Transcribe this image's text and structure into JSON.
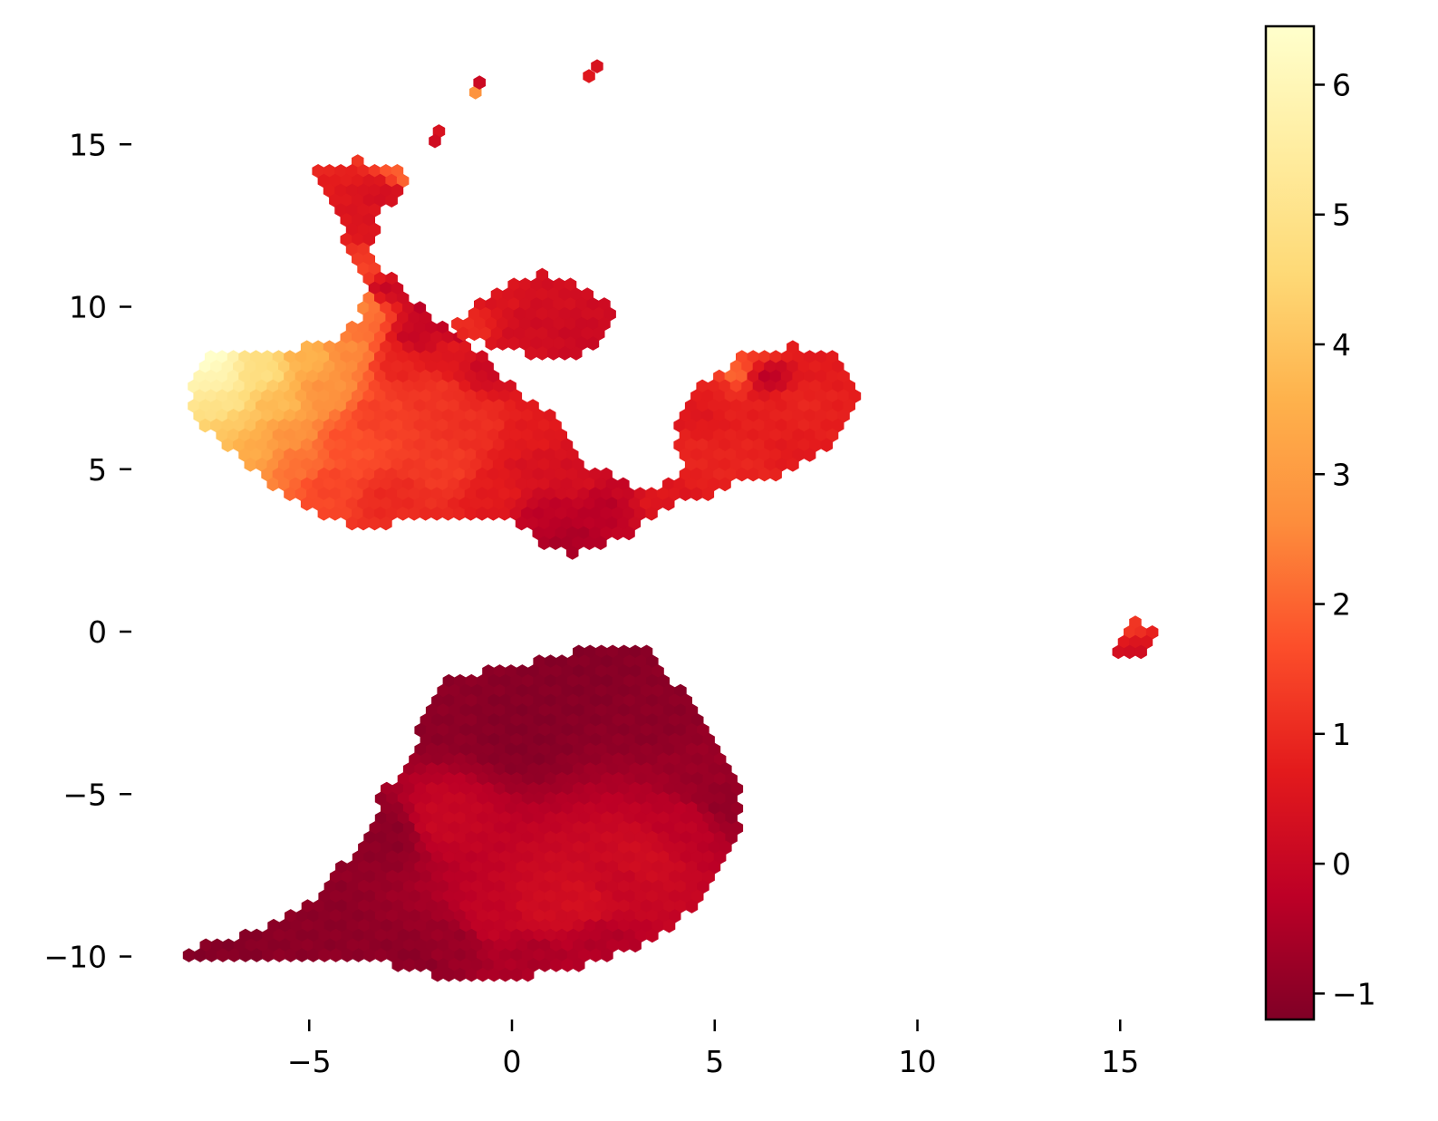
{
  "chart_data": {
    "type": "heatmap",
    "subtype": "hexbin",
    "title": "",
    "xlabel": "",
    "ylabel": "",
    "xlim": [
      -9.9,
      19.7
    ],
    "ylim": [
      -11.8,
      19.0
    ],
    "xticks": [
      -5,
      0,
      5,
      10,
      15
    ],
    "xtick_labels": [
      "−5",
      "0",
      "5",
      "10",
      "15"
    ],
    "yticks": [
      -10,
      -5,
      0,
      5,
      10,
      15
    ],
    "ytick_labels": [
      "−10",
      "−5",
      "0",
      "5",
      "10",
      "15"
    ],
    "grid": false,
    "spines": false,
    "colormap": "YlOrRd_r",
    "colormap_stops": [
      "#800026",
      "#bd0026",
      "#e31a1c",
      "#fc4e2a",
      "#fd8d3c",
      "#feb24c",
      "#fed976",
      "#ffeda0",
      "#ffffcc"
    ],
    "colorbar": {
      "position": "right",
      "range": [
        -1.2,
        6.45
      ],
      "ticks": [
        -1,
        0,
        1,
        2,
        3,
        4,
        5,
        6
      ],
      "tick_labels": [
        "−1",
        "0",
        "1",
        "2",
        "3",
        "4",
        "5",
        "6"
      ]
    },
    "regions": [
      {
        "name": "upper-left cluster",
        "outline": [
          [
            -7.6,
            8.6
          ],
          [
            -6.2,
            8.6
          ],
          [
            -4.8,
            8.8
          ],
          [
            -4.2,
            9.1
          ],
          [
            -3.8,
            9.6
          ],
          [
            -3.6,
            10.3
          ],
          [
            -3.7,
            11.0
          ],
          [
            -4.0,
            11.8
          ],
          [
            -4.5,
            13.3
          ],
          [
            -4.8,
            14.2
          ],
          [
            -3.8,
            14.5
          ],
          [
            -2.7,
            14.4
          ],
          [
            -2.5,
            14.1
          ],
          [
            -3.2,
            12.8
          ],
          [
            -3.6,
            11.8
          ],
          [
            -3.2,
            11.2
          ],
          [
            -2.4,
            10.1
          ],
          [
            -1.5,
            9.3
          ],
          [
            -0.6,
            8.4
          ],
          [
            -0.5,
            7.9
          ],
          [
            0.3,
            7.3
          ],
          [
            0.9,
            6.7
          ],
          [
            1.5,
            6.0
          ],
          [
            1.6,
            5.3
          ],
          [
            2.8,
            4.6
          ],
          [
            3.4,
            4.4
          ],
          [
            4.0,
            4.6
          ],
          [
            4.3,
            5.2
          ],
          [
            4.0,
            5.8
          ],
          [
            4.0,
            6.5
          ],
          [
            4.3,
            7.1
          ],
          [
            4.9,
            7.8
          ],
          [
            5.8,
            8.6
          ],
          [
            7.0,
            8.8
          ],
          [
            8.0,
            8.5
          ],
          [
            8.4,
            7.8
          ],
          [
            8.5,
            7.0
          ],
          [
            8.2,
            6.2
          ],
          [
            7.5,
            5.3
          ],
          [
            6.5,
            4.8
          ],
          [
            5.6,
            4.6
          ],
          [
            4.8,
            4.2
          ],
          [
            4.0,
            4.1
          ],
          [
            3.6,
            3.6
          ],
          [
            2.9,
            3.0
          ],
          [
            2.2,
            2.6
          ],
          [
            1.4,
            2.4
          ],
          [
            0.7,
            2.7
          ],
          [
            0.3,
            3.2
          ],
          [
            -0.4,
            3.5
          ],
          [
            -1.2,
            3.5
          ],
          [
            -2.0,
            3.5
          ],
          [
            -2.7,
            3.4
          ],
          [
            -3.6,
            3.2
          ],
          [
            -4.2,
            3.4
          ],
          [
            -5.0,
            3.7
          ],
          [
            -5.8,
            4.4
          ],
          [
            -6.6,
            5.3
          ],
          [
            -7.6,
            6.3
          ],
          [
            -7.9,
            7.0
          ],
          [
            -7.9,
            7.9
          ]
        ],
        "values": [
          [
            -7.5,
            8.3,
            6.4
          ],
          [
            -7.3,
            7.8,
            5.8
          ],
          [
            -7.1,
            7.0,
            5.0
          ],
          [
            -6.8,
            6.3,
            4.1
          ],
          [
            -6.4,
            5.8,
            3.4
          ],
          [
            -6.2,
            8.0,
            4.8
          ],
          [
            -5.8,
            7.0,
            3.8
          ],
          [
            -5.5,
            6.0,
            2.8
          ],
          [
            -5.2,
            5.2,
            2.2
          ],
          [
            -5.0,
            8.4,
            3.6
          ],
          [
            -4.6,
            7.4,
            2.8
          ],
          [
            -4.5,
            4.5,
            1.5
          ],
          [
            -4.1,
            5.8,
            1.7
          ],
          [
            -4.0,
            8.6,
            2.6
          ],
          [
            -3.7,
            9.5,
            2.2
          ],
          [
            -3.6,
            10.1,
            2.5
          ],
          [
            -3.5,
            12.6,
            0.5
          ],
          [
            -3.1,
            13.5,
            0.3
          ],
          [
            -2.7,
            14.1,
            2.0
          ],
          [
            -3.6,
            11.1,
            1.4
          ],
          [
            -3.2,
            10.5,
            0.0
          ],
          [
            -3.3,
            6.6,
            1.4
          ],
          [
            -3.0,
            4.0,
            1.0
          ],
          [
            -2.8,
            8.3,
            0.9
          ],
          [
            -2.4,
            9.1,
            0.0
          ],
          [
            -2.0,
            10.3,
            -0.4
          ],
          [
            -1.9,
            7.2,
            1.2
          ],
          [
            -1.6,
            5.1,
            1.3
          ],
          [
            -1.4,
            8.6,
            0.6
          ],
          [
            -1.2,
            9.4,
            -0.3
          ],
          [
            -0.8,
            6.3,
            1.1
          ],
          [
            -0.6,
            8.2,
            0.1
          ],
          [
            -0.4,
            4.3,
            0.7
          ],
          [
            0.3,
            6.0,
            0.7
          ],
          [
            0.6,
            5.0,
            0.4
          ],
          [
            0.9,
            3.5,
            -0.2
          ],
          [
            1.3,
            2.8,
            -0.5
          ],
          [
            1.7,
            4.7,
            0.3
          ],
          [
            2.3,
            3.9,
            -0.3
          ],
          [
            2.7,
            4.3,
            0.0
          ],
          [
            3.5,
            4.2,
            0.6
          ],
          [
            4.3,
            5.5,
            0.9
          ],
          [
            4.5,
            6.7,
            0.6
          ],
          [
            4.9,
            7.5,
            0.8
          ],
          [
            5.5,
            8.0,
            2.0
          ],
          [
            6.1,
            8.5,
            1.3
          ],
          [
            6.3,
            7.9,
            -0.2
          ],
          [
            6.5,
            6.8,
            0.8
          ],
          [
            7.2,
            7.0,
            0.9
          ],
          [
            7.6,
            8.2,
            0.7
          ],
          [
            8.1,
            6.4,
            0.8
          ],
          [
            7.0,
            5.4,
            0.7
          ],
          [
            5.8,
            5.0,
            0.9
          ]
        ]
      },
      {
        "name": "upper-middle lobe",
        "outline": [
          [
            -1.4,
            9.6
          ],
          [
            -0.9,
            10.0
          ],
          [
            -0.4,
            10.5
          ],
          [
            0.1,
            10.9
          ],
          [
            0.7,
            11.0
          ],
          [
            1.3,
            10.9
          ],
          [
            1.8,
            10.6
          ],
          [
            2.3,
            10.1
          ],
          [
            2.5,
            9.6
          ],
          [
            2.3,
            9.0
          ],
          [
            1.9,
            8.6
          ],
          [
            1.2,
            8.5
          ],
          [
            0.5,
            8.5
          ],
          [
            -0.2,
            8.7
          ],
          [
            -0.8,
            8.9
          ],
          [
            -1.3,
            9.2
          ]
        ],
        "values": [
          [
            -1.0,
            9.4,
            1.0
          ],
          [
            -0.3,
            10.2,
            0.5
          ],
          [
            0.5,
            9.5,
            0.2
          ],
          [
            1.2,
            10.2,
            0.3
          ],
          [
            1.7,
            9.2,
            0.1
          ],
          [
            2.1,
            9.8,
            0.2
          ],
          [
            0.2,
            8.9,
            0.3
          ]
        ]
      },
      {
        "name": "lower cluster",
        "outline": [
          [
            -8.3,
            -10.0
          ],
          [
            -7.8,
            -9.7
          ],
          [
            -6.5,
            -9.3
          ],
          [
            -5.8,
            -8.9
          ],
          [
            -4.8,
            -8.3
          ],
          [
            -4.4,
            -7.5
          ],
          [
            -3.8,
            -6.6
          ],
          [
            -3.2,
            -5.0
          ],
          [
            -2.6,
            -4.0
          ],
          [
            -2.3,
            -3.1
          ],
          [
            -1.8,
            -1.6
          ],
          [
            -1.2,
            -1.3
          ],
          [
            -0.4,
            -1.2
          ],
          [
            0.5,
            -0.9
          ],
          [
            1.5,
            -0.6
          ],
          [
            2.5,
            -0.6
          ],
          [
            3.3,
            -0.6
          ],
          [
            3.7,
            -1.0
          ],
          [
            4.4,
            -2.2
          ],
          [
            5.2,
            -3.5
          ],
          [
            5.6,
            -4.5
          ],
          [
            5.7,
            -5.4
          ],
          [
            5.5,
            -6.7
          ],
          [
            4.9,
            -7.8
          ],
          [
            4.2,
            -8.8
          ],
          [
            3.2,
            -9.7
          ],
          [
            1.8,
            -10.3
          ],
          [
            0.5,
            -10.6
          ],
          [
            -1.2,
            -10.7
          ],
          [
            -2.8,
            -10.4
          ],
          [
            -3.5,
            -10.0
          ],
          [
            -5.8,
            -10.0
          ],
          [
            -8.3,
            -10.1
          ]
        ],
        "values": [
          [
            -7.5,
            -9.9,
            -1.1
          ],
          [
            -5.0,
            -8.8,
            -1.0
          ],
          [
            -3.0,
            -6.2,
            -1.0
          ],
          [
            -2.0,
            -2.5,
            -1.0
          ],
          [
            -1.8,
            -5.8,
            0.0
          ],
          [
            0.2,
            -3.0,
            -1.1
          ],
          [
            1.8,
            -1.5,
            -1.1
          ],
          [
            3.5,
            -2.5,
            -1.0
          ],
          [
            4.8,
            -4.5,
            -0.8
          ],
          [
            4.2,
            -6.0,
            -0.2
          ],
          [
            3.2,
            -7.0,
            0.2
          ],
          [
            2.6,
            -7.8,
            0.0
          ],
          [
            1.8,
            -8.3,
            0.3
          ],
          [
            0.8,
            -8.6,
            0.2
          ],
          [
            -0.5,
            -8.8,
            -0.1
          ],
          [
            2.2,
            -9.6,
            -0.4
          ],
          [
            0.5,
            -10.0,
            -0.5
          ],
          [
            -1.5,
            -9.6,
            -0.8
          ],
          [
            -2.5,
            -10.2,
            -1.0
          ],
          [
            5.3,
            -5.2,
            -0.9
          ]
        ]
      },
      {
        "name": "right island",
        "outline": [
          [
            14.9,
            -0.3
          ],
          [
            15.1,
            0.2
          ],
          [
            15.4,
            0.3
          ],
          [
            15.8,
            0.1
          ],
          [
            15.9,
            -0.4
          ],
          [
            15.6,
            -0.8
          ],
          [
            15.2,
            -0.8
          ],
          [
            14.9,
            -0.6
          ]
        ],
        "values": [
          [
            15.3,
            0.1,
            1.3
          ],
          [
            15.4,
            -0.3,
            0.6
          ],
          [
            15.4,
            -0.7,
            0.1
          ]
        ]
      }
    ],
    "points": [
      {
        "x": -1.8,
        "y": 15.4,
        "value": 0.4
      },
      {
        "x": -1.9,
        "y": 15.1,
        "value": 0.2
      },
      {
        "x": -0.9,
        "y": 16.6,
        "value": 2.8
      },
      {
        "x": -0.8,
        "y": 16.9,
        "value": 0.1
      },
      {
        "x": 1.9,
        "y": 17.1,
        "value": 0.6
      },
      {
        "x": 2.1,
        "y": 17.4,
        "value": 0.4
      }
    ]
  }
}
